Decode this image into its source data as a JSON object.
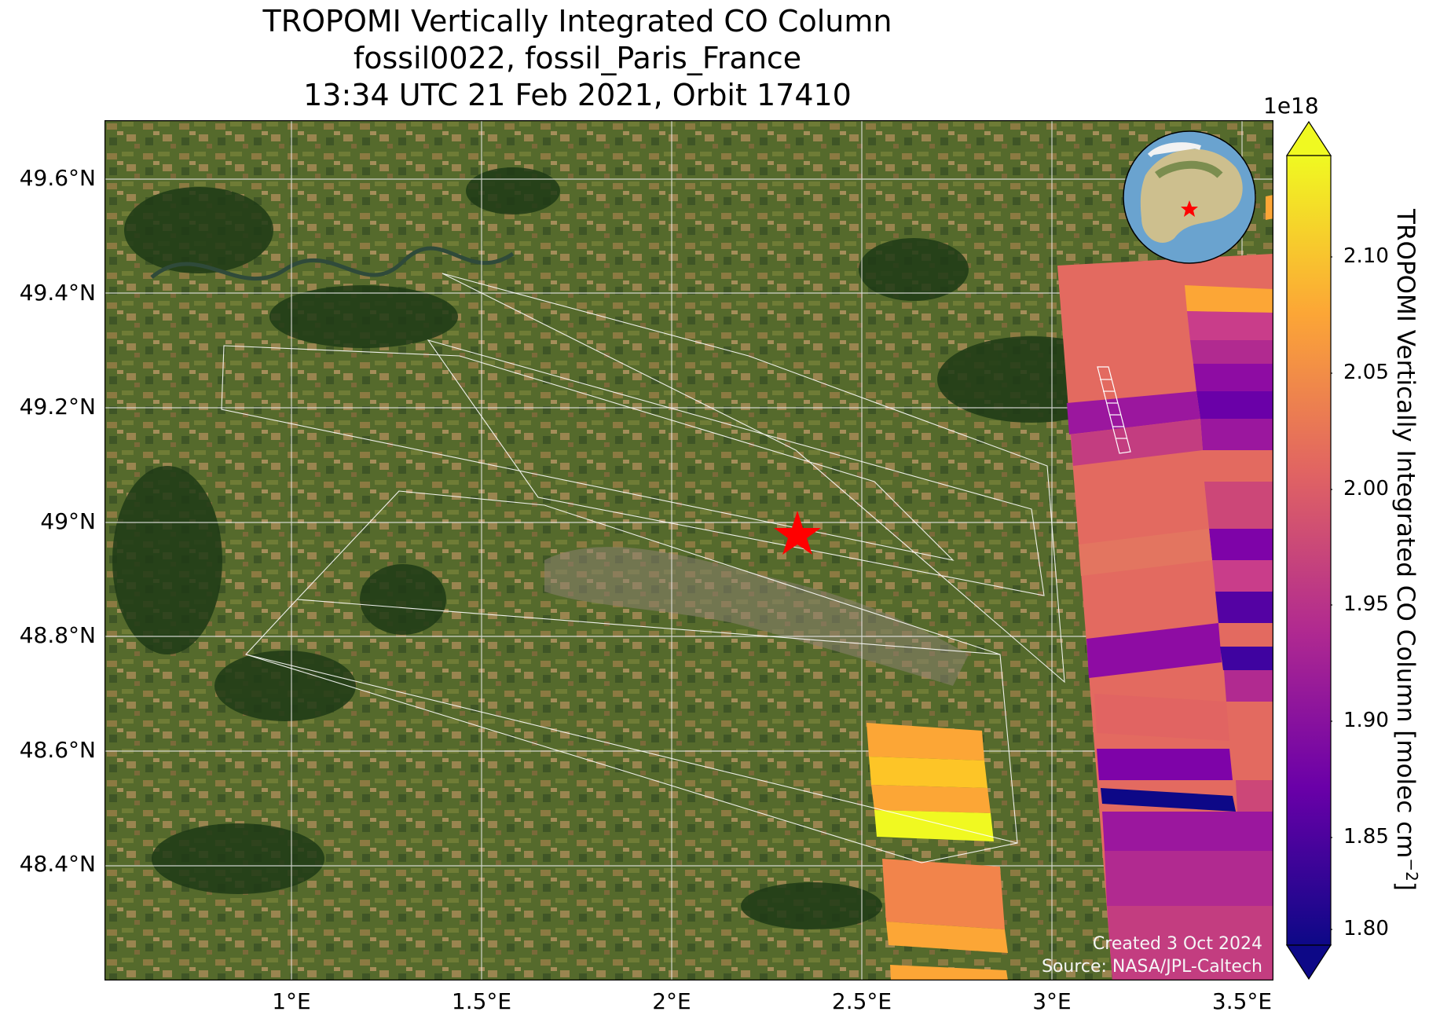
{
  "title": {
    "line1": "TROPOMI Vertically Integrated CO Column",
    "line2": "fossil0022, fossil_Paris_France",
    "line3": "13:34 UTC 21 Feb 2021, Orbit 17410"
  },
  "map": {
    "lat_ticks": [
      "49.6°N",
      "49.4°N",
      "49.2°N",
      "49°N",
      "48.8°N",
      "48.6°N",
      "48.4°N"
    ],
    "lon_ticks": [
      "1°E",
      "1.5°E",
      "2°E",
      "2.5°E",
      "3°E",
      "3.5°E"
    ],
    "target_marker": "red-star",
    "inset": "globe-locator-icon",
    "credits": {
      "created": "Created 3 Oct 2024",
      "source": "Source: NASA/JPL-Caltech"
    }
  },
  "colorbar": {
    "exponent": "1e18",
    "label": "TROPOMI Vertically Integrated CO Column [molec cm",
    "label_sup": "−2",
    "label_end": "]",
    "ticks": [
      "2.10",
      "2.05",
      "2.00",
      "1.95",
      "1.90",
      "1.85",
      "1.80"
    ],
    "colormap": [
      "#0d0887",
      "#6a00a8",
      "#b12a90",
      "#e16462",
      "#fca636",
      "#f0f921"
    ]
  }
}
